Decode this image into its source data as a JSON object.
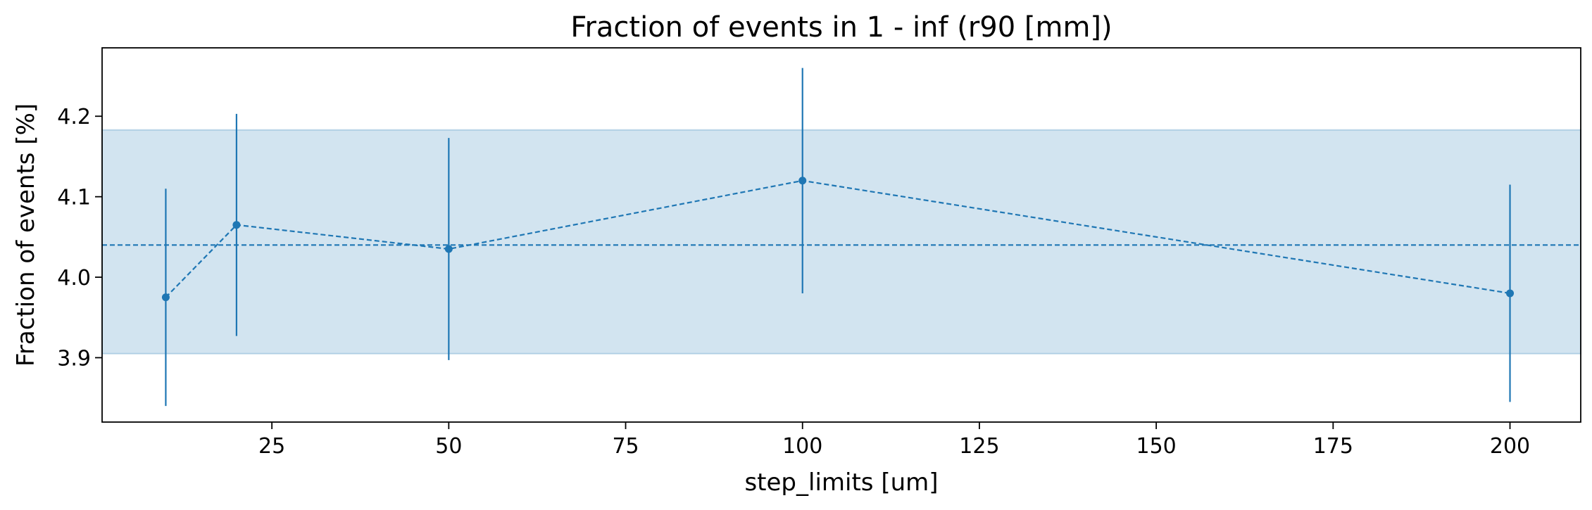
{
  "chart_data": {
    "type": "line",
    "title": "Fraction of events in 1 - inf (r90 [mm])",
    "xlabel": "step_limits [um]",
    "ylabel": "Fraction of events [%]",
    "xlim": [
      1,
      210
    ],
    "ylim": [
      3.82,
      4.285
    ],
    "xticks": [
      25,
      50,
      75,
      100,
      125,
      150,
      175,
      200
    ],
    "yticks": [
      3.9,
      4.0,
      4.1,
      4.2
    ],
    "grid": false,
    "legend": "none",
    "colors": {
      "series": "#1f77b4",
      "band": "#1f77b4",
      "band_opacity": 0.2
    },
    "series": [
      {
        "x": [
          10,
          20,
          50,
          100,
          200
        ],
        "y": [
          3.975,
          4.065,
          4.035,
          4.12,
          3.98
        ],
        "yerr": [
          0.135,
          0.138,
          0.138,
          0.14,
          0.135
        ]
      }
    ],
    "mean_line": 4.04,
    "band": [
      3.905,
      4.183
    ]
  }
}
